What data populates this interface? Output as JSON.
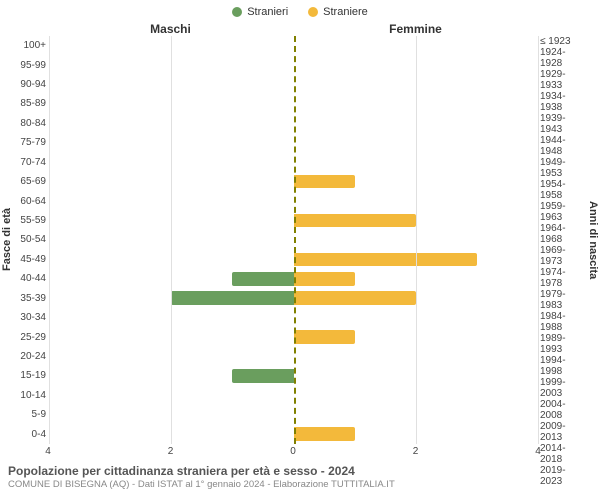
{
  "legend": {
    "male": {
      "label": "Stranieri",
      "color": "#6a9e5e"
    },
    "female": {
      "label": "Straniere",
      "color": "#f3b93b"
    }
  },
  "headers": {
    "male": "Maschi",
    "female": "Femmine"
  },
  "y_axis_left": {
    "title": "Fasce di età"
  },
  "y_axis_right": {
    "title": "Anni di nascita"
  },
  "x_axis": {
    "max": 4,
    "ticks": [
      4,
      2,
      0,
      2,
      4
    ],
    "gridline_color": "#e0e0e0",
    "center_line_color": "#808000"
  },
  "rows": [
    {
      "age": "100+",
      "birth": "≤ 1923",
      "m": 0,
      "f": 0
    },
    {
      "age": "95-99",
      "birth": "1924-1928",
      "m": 0,
      "f": 0
    },
    {
      "age": "90-94",
      "birth": "1929-1933",
      "m": 0,
      "f": 0
    },
    {
      "age": "85-89",
      "birth": "1934-1938",
      "m": 0,
      "f": 0
    },
    {
      "age": "80-84",
      "birth": "1939-1943",
      "m": 0,
      "f": 0
    },
    {
      "age": "75-79",
      "birth": "1944-1948",
      "m": 0,
      "f": 0
    },
    {
      "age": "70-74",
      "birth": "1949-1953",
      "m": 0,
      "f": 0
    },
    {
      "age": "65-69",
      "birth": "1954-1958",
      "m": 0,
      "f": 1
    },
    {
      "age": "60-64",
      "birth": "1959-1963",
      "m": 0,
      "f": 0
    },
    {
      "age": "55-59",
      "birth": "1964-1968",
      "m": 0,
      "f": 2
    },
    {
      "age": "50-54",
      "birth": "1969-1973",
      "m": 0,
      "f": 0
    },
    {
      "age": "45-49",
      "birth": "1974-1978",
      "m": 0,
      "f": 3
    },
    {
      "age": "40-44",
      "birth": "1979-1983",
      "m": 1,
      "f": 1
    },
    {
      "age": "35-39",
      "birth": "1984-1988",
      "m": 2,
      "f": 2
    },
    {
      "age": "30-34",
      "birth": "1989-1993",
      "m": 0,
      "f": 0
    },
    {
      "age": "25-29",
      "birth": "1994-1998",
      "m": 0,
      "f": 1
    },
    {
      "age": "20-24",
      "birth": "1999-2003",
      "m": 0,
      "f": 0
    },
    {
      "age": "15-19",
      "birth": "2004-2008",
      "m": 1,
      "f": 0
    },
    {
      "age": "10-14",
      "birth": "2009-2013",
      "m": 0,
      "f": 0
    },
    {
      "age": "5-9",
      "birth": "2014-2018",
      "m": 0,
      "f": 0
    },
    {
      "age": "0-4",
      "birth": "2019-2023",
      "m": 0,
      "f": 1
    }
  ],
  "footer": {
    "title": "Popolazione per cittadinanza straniera per età e sesso - 2024",
    "subtitle": "COMUNE DI BISEGNA (AQ) - Dati ISTAT al 1° gennaio 2024 - Elaborazione TUTTITALIA.IT"
  },
  "style": {
    "background": "#ffffff",
    "font_family": "Arial",
    "tick_font_size": 10,
    "header_font_size": 12,
    "title_font_size": 12,
    "subtitle_font_size": 9.5,
    "bar_height_ratio": 0.7
  }
}
